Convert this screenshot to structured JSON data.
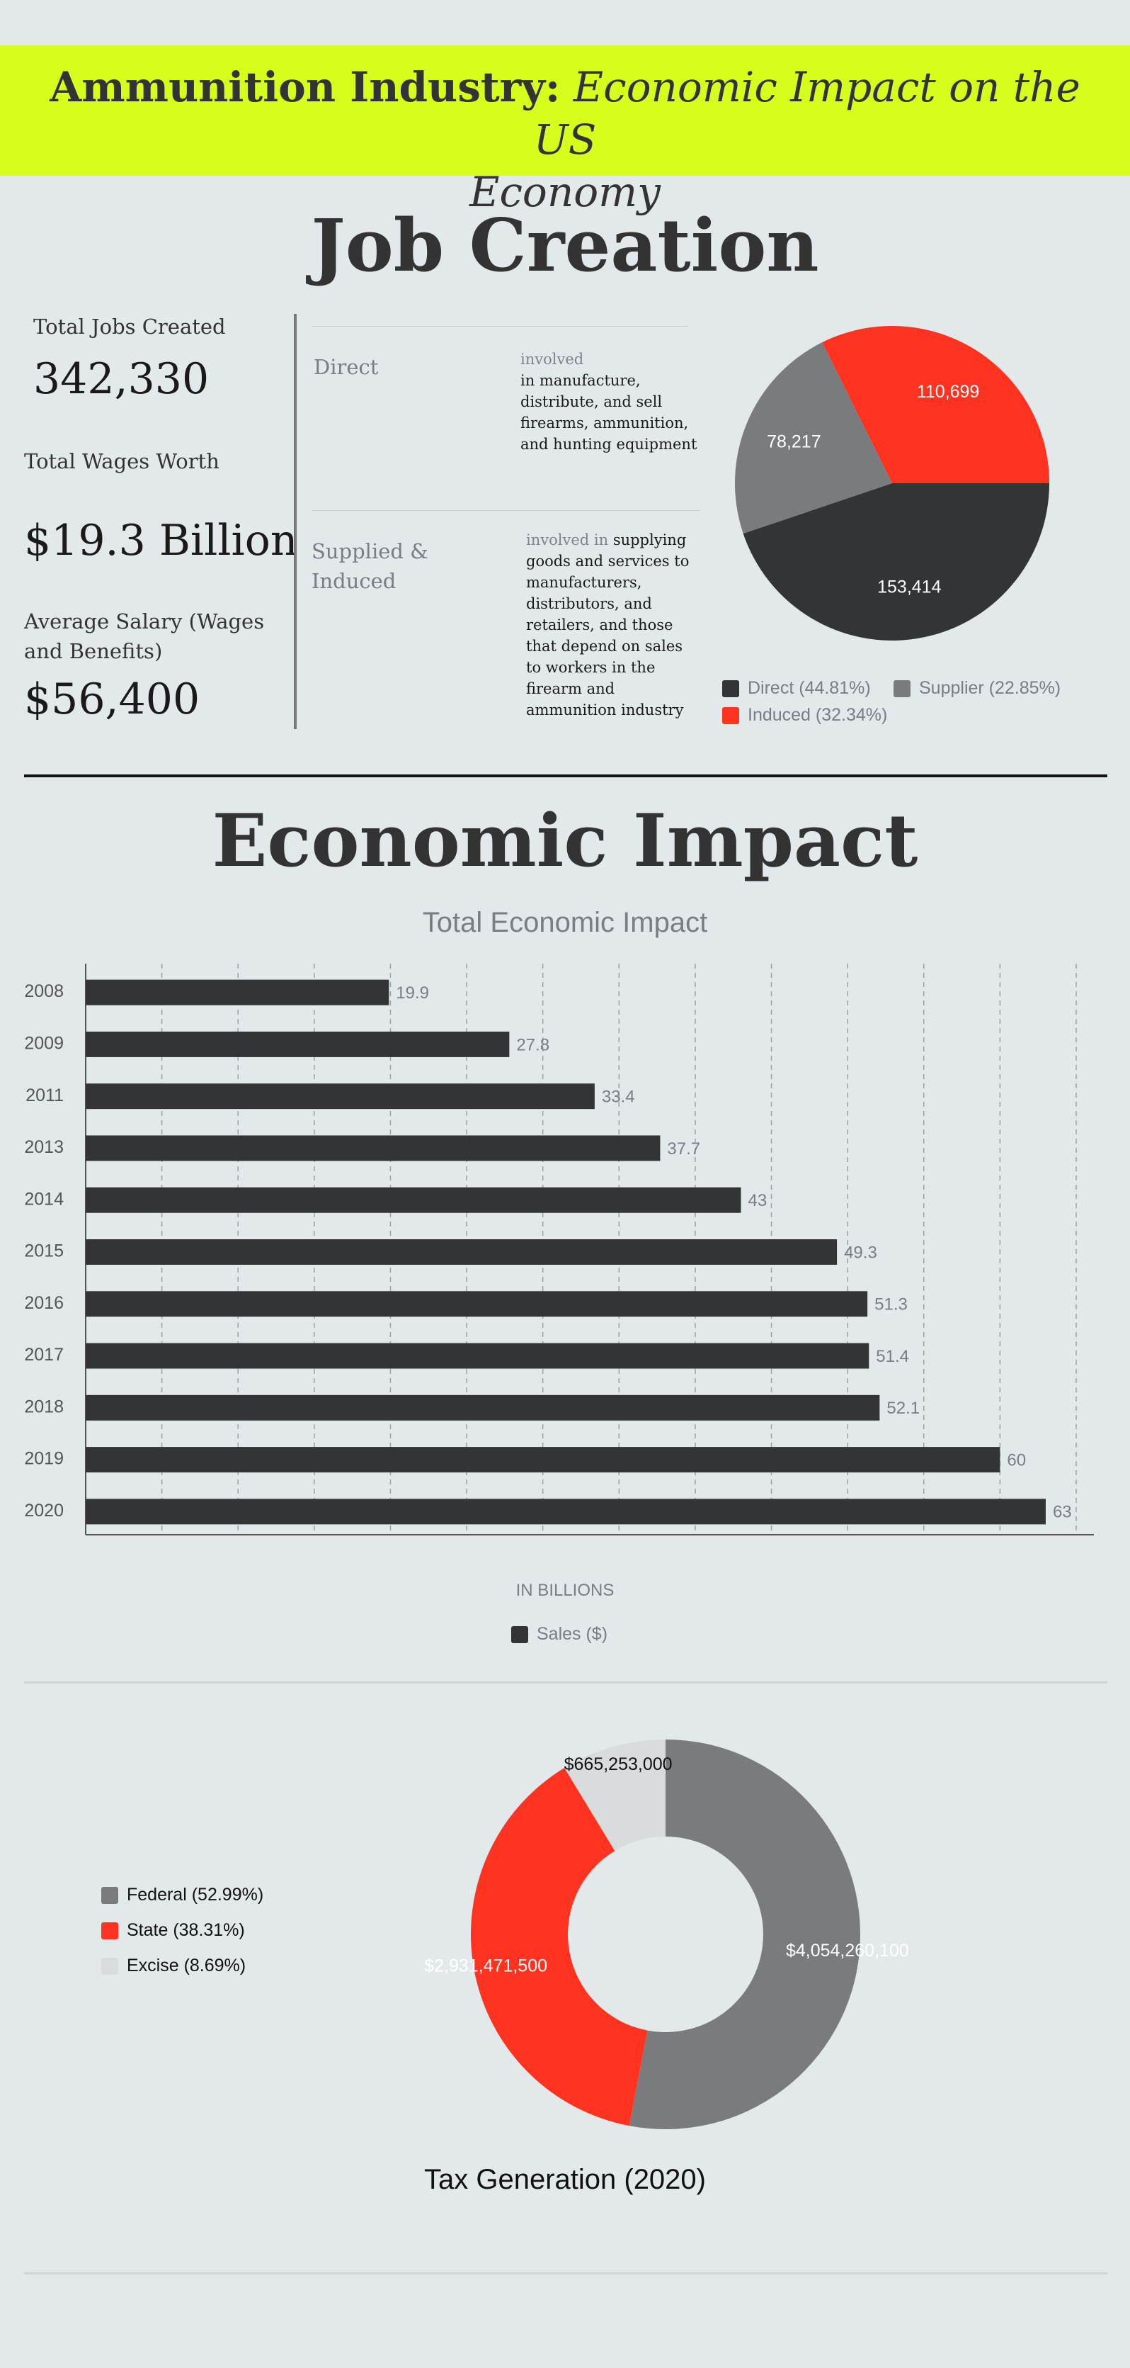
{
  "header": {
    "title_bold": "Ammunition Industry:",
    "title_italic_1": "Economic Impact on the US",
    "title_italic_2": "Economy"
  },
  "job_creation": {
    "title": "Job Creation",
    "stats": {
      "total_jobs_label": "Total Jobs Created",
      "total_jobs_value": "342,330",
      "total_wages_label": "Total Wages Worth",
      "total_wages_value": "$19.3 Billion",
      "avg_salary_label_1": "Average Salary (Wages",
      "avg_salary_label_2": "and Benefits)",
      "avg_salary_value": "$56,400"
    },
    "categories": [
      {
        "name": [
          "Direct"
        ],
        "lead": "involved",
        "desc": [
          "in manufacture,",
          "distribute, and sell",
          "firearms, ammunition,",
          "and hunting equipment"
        ]
      },
      {
        "name": [
          "Supplied &",
          "Induced"
        ],
        "lead": "involved in",
        "desc": [
          "supplying",
          "goods and services to",
          "manufacturers,",
          "distributors, and",
          "retailers, and those",
          "that depend on sales",
          "to workers in the",
          "firearm and",
          "ammunition industry"
        ]
      }
    ]
  },
  "economic_impact": {
    "title": "Economic Impact"
  },
  "colors": {
    "dark": "#333438",
    "grey": "#7a7b7e",
    "red": "#ff3320",
    "light": "#d9dcdd",
    "accent": "#d6fe1d"
  },
  "chart_data": [
    {
      "type": "pie",
      "labels": [
        "Direct",
        "Supplier",
        "Induced"
      ],
      "values": [
        153414,
        78217,
        110699
      ],
      "value_labels": [
        "153,414",
        "78,217",
        "110,699"
      ],
      "legend": [
        "Direct (44.81%)",
        "Supplier (22.85%)",
        "Induced (32.34%)"
      ],
      "legend_position": "bottom",
      "colors": [
        "#333438",
        "#7a7b7e",
        "#ff3320"
      ]
    },
    {
      "type": "bar",
      "orientation": "horizontal",
      "title": "Total Economic Impact",
      "categories": [
        "2008",
        "2009",
        "2011",
        "2013",
        "2014",
        "2015",
        "2016",
        "2017",
        "2018",
        "2019",
        "2020"
      ],
      "series": [
        {
          "name": "Sales ($)",
          "values": [
            19.9,
            27.8,
            33.4,
            37.7,
            43,
            49.3,
            51.3,
            51.4,
            52.1,
            60,
            63
          ]
        }
      ],
      "value_labels": [
        "19.9",
        "27.8",
        "33.4",
        "37.7",
        "43",
        "49.3",
        "51.3",
        "51.4",
        "52.1",
        "60",
        "63"
      ],
      "xlabel": "IN BILLIONS",
      "xlim": [
        0,
        65
      ],
      "xticks": [
        "0",
        "5",
        "10",
        "15",
        "20",
        "25",
        "30",
        "35",
        "40",
        "45",
        "50",
        "55",
        "60",
        "65"
      ],
      "grid": "vertical dashed",
      "legend": [
        "Sales ($)"
      ],
      "legend_position": "bottom"
    },
    {
      "type": "pie",
      "subtype": "donut",
      "title": "Tax Generation (2020)",
      "labels": [
        "Federal",
        "State",
        "Excise"
      ],
      "values": [
        4054260100,
        2931471500,
        665253000
      ],
      "value_labels": [
        "$4,054,260,100",
        "$2,931,471,500",
        "$665,253,000"
      ],
      "legend": [
        "Federal (52.99%)",
        "State (38.31%)",
        "Excise (8.69%)"
      ],
      "legend_position": "left",
      "colors": [
        "#7a7b7e",
        "#ff3320",
        "#d9dcdd"
      ]
    }
  ]
}
